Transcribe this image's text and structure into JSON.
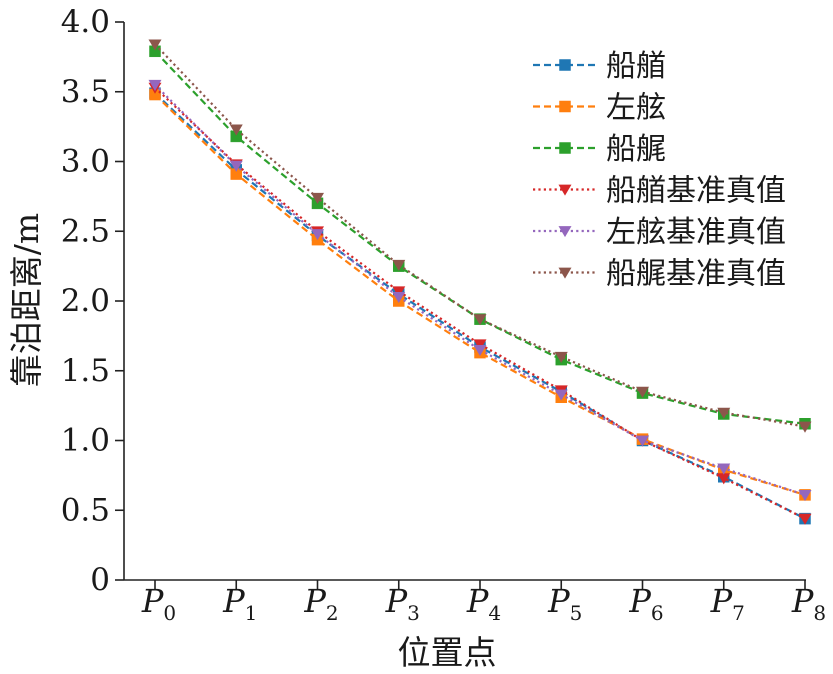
{
  "chart_data": {
    "type": "line",
    "xlabel": "位置点",
    "ylabel": "靠泊距离/m",
    "ylim": [
      0,
      4.0
    ],
    "yticks": [
      "0",
      "0.5",
      "1.0",
      "1.5",
      "2.0",
      "2.5",
      "3.0",
      "3.5",
      "4.0"
    ],
    "categories": [
      {
        "main": "P",
        "sub": "0"
      },
      {
        "main": "P",
        "sub": "1"
      },
      {
        "main": "P",
        "sub": "2"
      },
      {
        "main": "P",
        "sub": "3"
      },
      {
        "main": "P",
        "sub": "4"
      },
      {
        "main": "P",
        "sub": "5"
      },
      {
        "main": "P",
        "sub": "6"
      },
      {
        "main": "P",
        "sub": "7"
      },
      {
        "main": "P",
        "sub": "8"
      }
    ],
    "legend_position": "top-right",
    "grid": false,
    "series": [
      {
        "name": "船艏",
        "color": "#1f77b4",
        "line": "dashed",
        "marker": "square",
        "values": [
          3.49,
          2.94,
          2.47,
          2.05,
          1.67,
          1.35,
          1.0,
          0.74,
          0.44
        ]
      },
      {
        "name": "左舷",
        "color": "#ff7f0e",
        "line": "dashed",
        "marker": "square",
        "values": [
          3.48,
          2.91,
          2.44,
          2.0,
          1.63,
          1.31,
          1.01,
          0.79,
          0.61
        ]
      },
      {
        "name": "船艉",
        "color": "#2ca02c",
        "line": "dashed",
        "marker": "square",
        "values": [
          3.79,
          3.18,
          2.7,
          2.25,
          1.87,
          1.58,
          1.34,
          1.19,
          1.12
        ]
      },
      {
        "name": "船艏基准真值",
        "color": "#d62728",
        "line": "dotted",
        "marker": "triangle-down",
        "values": [
          3.53,
          2.98,
          2.5,
          2.07,
          1.69,
          1.36,
          1.0,
          0.73,
          0.44
        ]
      },
      {
        "name": "左舷基准真值",
        "color": "#9467bd",
        "line": "dotted",
        "marker": "triangle-down",
        "values": [
          3.55,
          2.97,
          2.48,
          2.03,
          1.65,
          1.33,
          1.0,
          0.8,
          0.61
        ]
      },
      {
        "name": "船艉基准真值",
        "color": "#8c564b",
        "line": "dotted",
        "marker": "triangle-down",
        "values": [
          3.84,
          3.23,
          2.74,
          2.26,
          1.87,
          1.6,
          1.35,
          1.2,
          1.1
        ]
      }
    ]
  }
}
